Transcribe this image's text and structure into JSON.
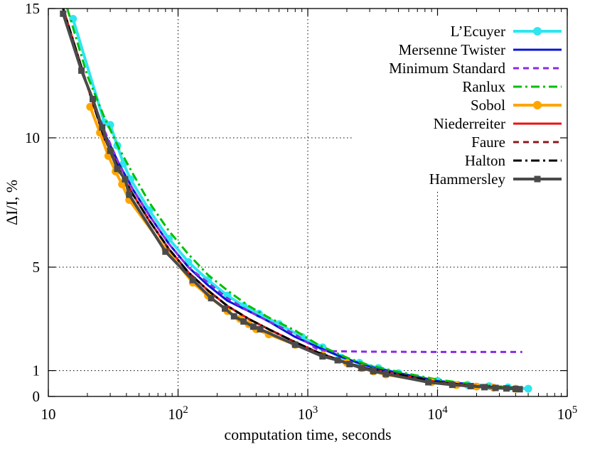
{
  "chart_data": {
    "type": "line",
    "xlabel": "computation time, seconds",
    "ylabel": "ΔI/I, %",
    "xscale": "log",
    "xlim": [
      10,
      100000
    ],
    "ylim": [
      0,
      15
    ],
    "grid": true,
    "legend_position": "top-right",
    "x_ticks": [
      {
        "value": 10,
        "base": "10",
        "exp": ""
      },
      {
        "value": 100,
        "base": "10",
        "exp": "2"
      },
      {
        "value": 1000,
        "base": "10",
        "exp": "3"
      },
      {
        "value": 10000,
        "base": "10",
        "exp": "4"
      },
      {
        "value": 100000,
        "base": "10",
        "exp": "5"
      }
    ],
    "y_ticks": [
      {
        "value": 0,
        "label": "0"
      },
      {
        "value": 1,
        "label": "1"
      },
      {
        "value": 5,
        "label": "5"
      },
      {
        "value": 10,
        "label": "10"
      },
      {
        "value": 15,
        "label": "15"
      }
    ],
    "series": [
      {
        "name": "L’Ecuyer",
        "color": "#2ee6f0",
        "dash": "none",
        "marker": "circle",
        "points": [
          [
            15.5,
            14.6
          ],
          [
            27,
            10.6
          ],
          [
            30,
            10.5
          ],
          [
            34,
            9.7
          ],
          [
            38,
            9.0
          ],
          [
            43,
            8.4
          ],
          [
            60,
            7.2
          ],
          [
            85,
            6.1
          ],
          [
            120,
            5.2
          ],
          [
            170,
            4.5
          ],
          [
            240,
            3.9
          ],
          [
            320,
            3.5
          ],
          [
            420,
            3.2
          ],
          [
            600,
            2.8
          ],
          [
            900,
            2.3
          ],
          [
            1300,
            1.9
          ],
          [
            1800,
            1.5
          ],
          [
            2500,
            1.3
          ],
          [
            3500,
            1.1
          ],
          [
            5000,
            0.9
          ],
          [
            10000,
            0.6
          ],
          [
            17000,
            0.45
          ],
          [
            25000,
            0.4
          ],
          [
            35000,
            0.35
          ],
          [
            50000,
            0.3
          ]
        ]
      },
      {
        "name": "Mersenne Twister",
        "color": "#0a14d6",
        "dash": "none",
        "marker": "none",
        "points": [
          [
            13,
            15.0
          ],
          [
            20,
            12.0
          ],
          [
            27,
            10.2
          ],
          [
            35,
            9.0
          ],
          [
            45,
            8.0
          ],
          [
            60,
            7.0
          ],
          [
            85,
            5.9
          ],
          [
            120,
            5.0
          ],
          [
            170,
            4.3
          ],
          [
            240,
            3.7
          ],
          [
            350,
            3.3
          ],
          [
            500,
            2.9
          ],
          [
            800,
            2.3
          ],
          [
            1200,
            1.9
          ],
          [
            2000,
            1.45
          ],
          [
            3000,
            1.15
          ],
          [
            5000,
            0.9
          ],
          [
            10000,
            0.6
          ],
          [
            20000,
            0.45
          ],
          [
            45000,
            0.3
          ]
        ]
      },
      {
        "name": "Minimum Standard",
        "color": "#8a2be2",
        "dash": "8 6",
        "marker": "none",
        "points": [
          [
            13,
            15.0
          ],
          [
            20,
            12.0
          ],
          [
            27,
            10.3
          ],
          [
            35,
            9.0
          ],
          [
            45,
            8.0
          ],
          [
            60,
            7.0
          ],
          [
            85,
            5.9
          ],
          [
            120,
            5.0
          ],
          [
            170,
            4.4
          ],
          [
            240,
            3.8
          ],
          [
            350,
            3.3
          ],
          [
            500,
            2.9
          ],
          [
            800,
            2.4
          ],
          [
            1200,
            1.8
          ],
          [
            1500,
            1.75
          ],
          [
            3000,
            1.73
          ],
          [
            10000,
            1.72
          ],
          [
            45000,
            1.72
          ]
        ]
      },
      {
        "name": "Ranlux",
        "color": "#00c000",
        "dash": "12 5 3 5",
        "marker": "none",
        "points": [
          [
            14,
            15.0
          ],
          [
            20,
            12.4
          ],
          [
            27,
            10.8
          ],
          [
            35,
            9.6
          ],
          [
            45,
            8.6
          ],
          [
            60,
            7.5
          ],
          [
            85,
            6.4
          ],
          [
            120,
            5.5
          ],
          [
            170,
            4.7
          ],
          [
            240,
            4.1
          ],
          [
            350,
            3.5
          ],
          [
            500,
            3.05
          ],
          [
            800,
            2.55
          ],
          [
            1200,
            2.0
          ],
          [
            2000,
            1.5
          ],
          [
            3000,
            1.2
          ],
          [
            5000,
            0.95
          ],
          [
            10000,
            0.65
          ],
          [
            20000,
            0.45
          ],
          [
            45000,
            0.32
          ]
        ]
      },
      {
        "name": "Sobol",
        "color": "#ffa500",
        "dash": "none",
        "marker": "circle",
        "points": [
          [
            21,
            11.2
          ],
          [
            25,
            10.2
          ],
          [
            29,
            9.3
          ],
          [
            33,
            8.7
          ],
          [
            37,
            8.2
          ],
          [
            42,
            7.6
          ],
          [
            80,
            5.7
          ],
          [
            130,
            4.4
          ],
          [
            170,
            3.9
          ],
          [
            240,
            3.3
          ],
          [
            300,
            3.0
          ],
          [
            350,
            2.8
          ],
          [
            400,
            2.6
          ],
          [
            500,
            2.4
          ],
          [
            800,
            2.0
          ],
          [
            1300,
            1.6
          ],
          [
            2000,
            1.3
          ],
          [
            2600,
            1.1
          ],
          [
            3200,
            0.97
          ],
          [
            4000,
            0.85
          ],
          [
            9000,
            0.55
          ],
          [
            14000,
            0.44
          ],
          [
            20000,
            0.38
          ],
          [
            27000,
            0.34
          ],
          [
            40000,
            0.3
          ]
        ]
      },
      {
        "name": "Niederreiter",
        "color": "#ee1111",
        "dash": "none",
        "marker": "none",
        "points": [
          [
            13,
            15.0
          ],
          [
            20,
            12.0
          ],
          [
            27,
            10.0
          ],
          [
            35,
            8.8
          ],
          [
            45,
            7.8
          ],
          [
            60,
            6.8
          ],
          [
            85,
            5.7
          ],
          [
            120,
            4.8
          ],
          [
            170,
            4.1
          ],
          [
            240,
            3.5
          ],
          [
            350,
            3.0
          ],
          [
            500,
            2.6
          ],
          [
            800,
            2.1
          ],
          [
            1200,
            1.7
          ],
          [
            2000,
            1.3
          ],
          [
            3000,
            1.05
          ],
          [
            5000,
            0.85
          ],
          [
            10000,
            0.55
          ],
          [
            20000,
            0.4
          ],
          [
            45000,
            0.3
          ]
        ]
      },
      {
        "name": "Faure",
        "color": "#8b1a1a",
        "dash": "8 6",
        "marker": "none",
        "points": [
          [
            13,
            15.0
          ],
          [
            20,
            12.0
          ],
          [
            27,
            10.0
          ],
          [
            35,
            8.8
          ],
          [
            45,
            7.8
          ],
          [
            60,
            6.8
          ],
          [
            85,
            5.7
          ],
          [
            120,
            4.8
          ],
          [
            170,
            4.1
          ],
          [
            240,
            3.5
          ],
          [
            350,
            3.0
          ],
          [
            500,
            2.6
          ],
          [
            800,
            2.1
          ],
          [
            1200,
            1.7
          ],
          [
            2000,
            1.3
          ],
          [
            3000,
            1.05
          ],
          [
            5000,
            0.85
          ],
          [
            10000,
            0.55
          ],
          [
            20000,
            0.4
          ],
          [
            45000,
            0.3
          ]
        ]
      },
      {
        "name": "Halton",
        "color": "#000000",
        "dash": "12 5 3 5",
        "marker": "none",
        "points": [
          [
            13,
            15.0
          ],
          [
            20,
            12.0
          ],
          [
            27,
            10.0
          ],
          [
            35,
            8.8
          ],
          [
            45,
            7.8
          ],
          [
            60,
            6.8
          ],
          [
            85,
            5.7
          ],
          [
            120,
            4.8
          ],
          [
            170,
            4.1
          ],
          [
            240,
            3.5
          ],
          [
            350,
            3.0
          ],
          [
            500,
            2.6
          ],
          [
            800,
            2.1
          ],
          [
            1200,
            1.7
          ],
          [
            2000,
            1.3
          ],
          [
            3000,
            1.05
          ],
          [
            5000,
            0.85
          ],
          [
            10000,
            0.55
          ],
          [
            20000,
            0.4
          ],
          [
            45000,
            0.3
          ]
        ]
      },
      {
        "name": "Hammersley",
        "color": "#4a4a4a",
        "dash": "none",
        "marker": "square",
        "points": [
          [
            13,
            14.8
          ],
          [
            18,
            12.6
          ],
          [
            22,
            11.5
          ],
          [
            26,
            10.4
          ],
          [
            30,
            9.5
          ],
          [
            34,
            8.8
          ],
          [
            39,
            8.4
          ],
          [
            42,
            7.8
          ],
          [
            80,
            5.6
          ],
          [
            130,
            4.5
          ],
          [
            180,
            3.8
          ],
          [
            230,
            3.4
          ],
          [
            270,
            3.1
          ],
          [
            320,
            2.9
          ],
          [
            380,
            2.7
          ],
          [
            430,
            2.6
          ],
          [
            800,
            2.0
          ],
          [
            1300,
            1.55
          ],
          [
            1700,
            1.4
          ],
          [
            2100,
            1.25
          ],
          [
            2600,
            1.1
          ],
          [
            3200,
            0.98
          ],
          [
            4000,
            0.87
          ],
          [
            8500,
            0.55
          ],
          [
            13000,
            0.45
          ],
          [
            18000,
            0.4
          ],
          [
            23000,
            0.36
          ],
          [
            28000,
            0.33
          ],
          [
            34000,
            0.31
          ],
          [
            40000,
            0.29
          ],
          [
            43000,
            0.28
          ]
        ]
      }
    ]
  }
}
